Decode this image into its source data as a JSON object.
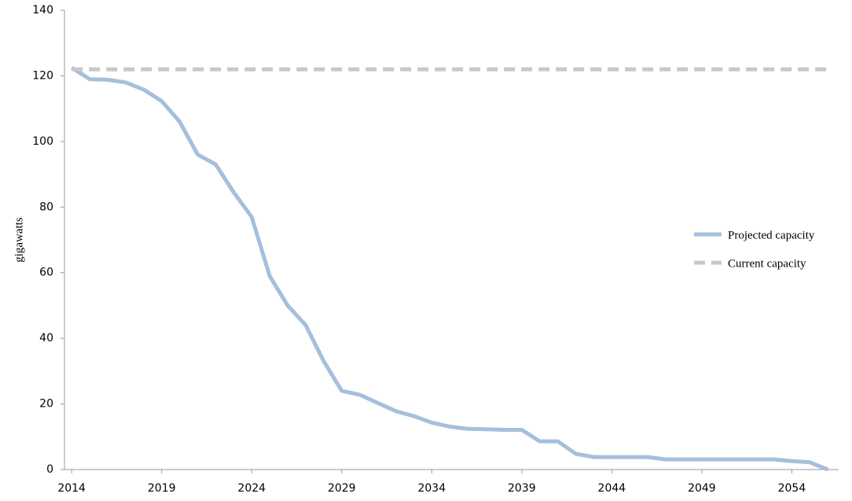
{
  "chart_data": {
    "type": "line",
    "y_label": "gigawatts",
    "x": [
      2014,
      2015,
      2016,
      2017,
      2018,
      2019,
      2020,
      2021,
      2022,
      2023,
      2024,
      2025,
      2026,
      2027,
      2028,
      2029,
      2030,
      2031,
      2032,
      2033,
      2034,
      2035,
      2036,
      2037,
      2038,
      2039,
      2040,
      2041,
      2042,
      2043,
      2044,
      2045,
      2046,
      2047,
      2048,
      2049,
      2050,
      2051,
      2052,
      2053,
      2054,
      2055,
      2056
    ],
    "series": [
      {
        "name": "Projected capacity",
        "color": "#a5bfdd",
        "dash": false,
        "values": [
          122.5,
          119,
          118.8,
          118,
          115.8,
          112.3,
          106,
          96,
          93,
          84.5,
          77,
          59,
          50,
          44,
          33,
          24,
          22.8,
          20.3,
          17.8,
          16.3,
          14.3,
          13.1,
          12.4,
          12.3,
          12.1,
          12.1,
          8.6,
          8.6,
          4.8,
          3.8,
          3.8,
          3.8,
          3.8,
          3.1,
          3.1,
          3.1,
          3.1,
          3.1,
          3.1,
          3.1,
          2.6,
          2.2,
          0
        ]
      },
      {
        "name": "Current capacity",
        "color": "#c8c8c8",
        "dash": true,
        "values": [
          122,
          122,
          122,
          122,
          122,
          122,
          122,
          122,
          122,
          122,
          122,
          122,
          122,
          122,
          122,
          122,
          122,
          122,
          122,
          122,
          122,
          122,
          122,
          122,
          122,
          122,
          122,
          122,
          122,
          122,
          122,
          122,
          122,
          122,
          122,
          122,
          122,
          122,
          122,
          122,
          122,
          122,
          122
        ]
      }
    ],
    "xlim": [
      2013.6,
      2056.6
    ],
    "xticks": [
      2014,
      2019,
      2024,
      2029,
      2034,
      2039,
      2044,
      2049,
      2054
    ],
    "ylim": [
      0,
      140
    ],
    "yticks": [
      0,
      20,
      40,
      60,
      80,
      100,
      120,
      140
    ],
    "legend": "right"
  }
}
